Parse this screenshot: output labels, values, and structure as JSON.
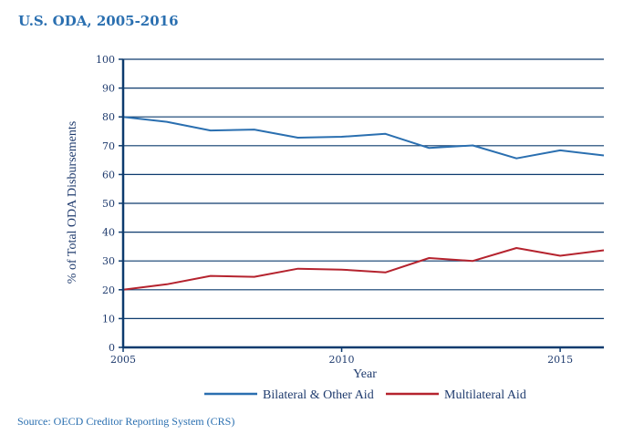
{
  "chart_data": {
    "type": "line",
    "title": "U.S. ODA, 2005-2016",
    "xlabel": "Year",
    "ylabel": "% of Total ODA Disbursements",
    "x": [
      2005,
      2006,
      2007,
      2008,
      2009,
      2010,
      2011,
      2012,
      2013,
      2014,
      2015,
      2016
    ],
    "xlim": [
      2005,
      2016
    ],
    "ylim": [
      0,
      100
    ],
    "x_ticks": [
      2005,
      2010,
      2015
    ],
    "x_tick_labels": [
      "2005",
      "2010",
      "2015"
    ],
    "y_ticks": [
      0,
      10,
      20,
      30,
      40,
      50,
      60,
      70,
      80,
      90,
      100
    ],
    "y_tick_labels": [
      "0",
      "10",
      "20",
      "30",
      "40",
      "50",
      "60",
      "70",
      "80",
      "90",
      "100"
    ],
    "grid": "horizontal",
    "legend_position": "bottom",
    "series": [
      {
        "name": "Bilateral & Other Aid",
        "color": "#2a6fb0",
        "values": [
          80.0,
          78.3,
          75.3,
          75.6,
          72.8,
          73.1,
          74.1,
          69.2,
          70.1,
          65.6,
          68.4,
          66.6
        ]
      },
      {
        "name": "Multilateral Aid",
        "color": "#b5232e",
        "values": [
          20.0,
          21.9,
          24.8,
          24.5,
          27.3,
          27.0,
          26.0,
          31.0,
          30.0,
          34.5,
          31.8,
          33.7
        ]
      }
    ],
    "grid_color": "#0d3b6e",
    "source": "Source: OECD Creditor Reporting System (CRS)"
  }
}
